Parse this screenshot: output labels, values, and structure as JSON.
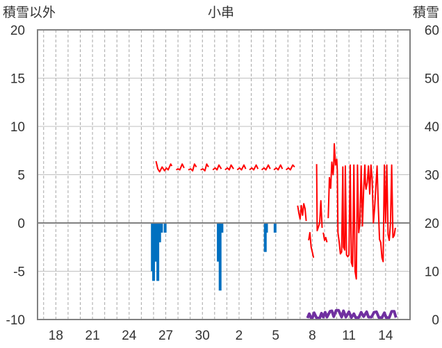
{
  "chart_data": {
    "type": "line",
    "title": "小串",
    "left_axis_label": "積雪以外",
    "right_axis_label": "積雪",
    "left_axis": {
      "min": -10,
      "max": 20,
      "ticks": [
        {
          "value": -10,
          "label": "-10"
        },
        {
          "value": -5,
          "label": "-5"
        },
        {
          "value": 0,
          "label": "0"
        },
        {
          "value": 5,
          "label": "5"
        },
        {
          "value": 10,
          "label": "10"
        },
        {
          "value": 15,
          "label": "15"
        },
        {
          "value": 20,
          "label": "20"
        }
      ]
    },
    "right_axis": {
      "min": 0,
      "max": 60,
      "ticks": [
        {
          "value": 0,
          "label": "0"
        },
        {
          "value": 10,
          "label": "10"
        },
        {
          "value": 20,
          "label": "20"
        },
        {
          "value": 30,
          "label": "30"
        },
        {
          "value": 40,
          "label": "40"
        },
        {
          "value": 50,
          "label": "50"
        },
        {
          "value": 60,
          "label": "60"
        }
      ]
    },
    "x_axis": {
      "min_day": 16.5,
      "max_day": 47.0,
      "ticks": [
        {
          "day": 18,
          "label": "18"
        },
        {
          "day": 21,
          "label": "21"
        },
        {
          "day": 24,
          "label": "24"
        },
        {
          "day": 27,
          "label": "27"
        },
        {
          "day": 30,
          "label": "30"
        },
        {
          "day": 33,
          "label": "2"
        },
        {
          "day": 36,
          "label": "5"
        },
        {
          "day": 39,
          "label": "8"
        },
        {
          "day": 42,
          "label": "11"
        },
        {
          "day": 45,
          "label": "14"
        }
      ]
    },
    "grid": {
      "vertical": "dashed",
      "horizontal": true
    },
    "colors": {
      "temperature": "#ff0000",
      "precipitation": "#0070c0",
      "snow": "#7030a0",
      "zero_line": "#808080"
    },
    "precipitation_bars": [
      {
        "day": 25.9,
        "value": -5.0
      },
      {
        "day": 26.0,
        "value": -6.0
      },
      {
        "day": 26.1,
        "value": -4.0
      },
      {
        "day": 26.2,
        "value": -4.0
      },
      {
        "day": 26.35,
        "value": -6.0
      },
      {
        "day": 26.5,
        "value": -2.0
      },
      {
        "day": 26.65,
        "value": -1.0
      },
      {
        "day": 26.95,
        "value": -1.0
      },
      {
        "day": 31.3,
        "value": -4.0
      },
      {
        "day": 31.4,
        "value": -4.0
      },
      {
        "day": 31.45,
        "value": -7.0
      },
      {
        "day": 31.55,
        "value": -1.0
      },
      {
        "day": 31.6,
        "value": -1.0
      },
      {
        "day": 35.15,
        "value": -3.0
      },
      {
        "day": 35.25,
        "value": -1.0
      },
      {
        "day": 35.95,
        "value": -1.0
      }
    ],
    "temperature_series": [
      [
        [
          26.2,
          6.4
        ],
        [
          26.35,
          5.6
        ],
        [
          26.5,
          5.3
        ],
        [
          26.7,
          5.8
        ],
        [
          26.9,
          5.4
        ],
        [
          27.05,
          5.7
        ],
        [
          27.2,
          5.5
        ],
        [
          27.4,
          6.1
        ],
        [
          27.5,
          5.9
        ]
      ],
      [
        [
          27.85,
          5.5
        ],
        [
          28.0,
          5.6
        ],
        [
          28.15,
          5.5
        ],
        [
          28.35,
          6.1
        ],
        [
          28.5,
          5.7
        ]
      ],
      [
        [
          28.85,
          5.5
        ],
        [
          29.05,
          5.6
        ],
        [
          29.2,
          5.4
        ],
        [
          29.35,
          6.1
        ],
        [
          29.5,
          5.8
        ]
      ],
      [
        [
          29.85,
          5.5
        ],
        [
          30.05,
          5.6
        ],
        [
          30.2,
          5.4
        ],
        [
          30.35,
          6.1
        ],
        [
          30.5,
          5.8
        ]
      ],
      [
        [
          30.85,
          5.5
        ],
        [
          31.05,
          5.7
        ],
        [
          31.2,
          5.5
        ],
        [
          31.35,
          6.0
        ],
        [
          31.55,
          5.6
        ]
      ],
      [
        [
          31.85,
          5.5
        ],
        [
          32.05,
          5.7
        ],
        [
          32.2,
          5.5
        ],
        [
          32.35,
          6.0
        ],
        [
          32.55,
          5.6
        ]
      ],
      [
        [
          32.85,
          5.5
        ],
        [
          33.05,
          5.7
        ],
        [
          33.2,
          5.5
        ],
        [
          33.4,
          6.0
        ],
        [
          33.55,
          5.6
        ]
      ],
      [
        [
          33.85,
          5.5
        ],
        [
          34.05,
          5.7
        ],
        [
          34.2,
          5.5
        ],
        [
          34.4,
          6.0
        ],
        [
          34.55,
          5.6
        ]
      ],
      [
        [
          34.85,
          5.5
        ],
        [
          35.05,
          5.7
        ],
        [
          35.2,
          5.5
        ],
        [
          35.4,
          6.0
        ],
        [
          35.55,
          5.6
        ]
      ],
      [
        [
          35.85,
          5.5
        ],
        [
          36.05,
          5.7
        ],
        [
          36.2,
          5.5
        ],
        [
          36.4,
          6.0
        ],
        [
          36.55,
          5.6
        ]
      ],
      [
        [
          36.85,
          5.5
        ],
        [
          37.05,
          5.7
        ],
        [
          37.2,
          5.5
        ],
        [
          37.4,
          6.0
        ],
        [
          37.55,
          5.8
        ]
      ],
      [
        [
          37.8,
          1.8
        ],
        [
          37.9,
          1.0
        ],
        [
          38.0,
          0.4
        ],
        [
          38.1,
          1.8
        ],
        [
          38.2,
          0.8
        ],
        [
          38.3,
          2.0
        ],
        [
          38.4,
          1.5
        ],
        [
          38.5,
          0.2
        ]
      ],
      [
        [
          38.7,
          -1.8
        ],
        [
          38.8,
          -1.0
        ],
        [
          38.9,
          -2.5
        ],
        [
          39.0,
          -3.0
        ],
        [
          39.1,
          -3.6
        ]
      ],
      [
        [
          39.35,
          6.1
        ],
        [
          39.4,
          -0.8
        ],
        [
          39.5,
          -0.4
        ],
        [
          39.6,
          0.0
        ],
        [
          39.7,
          2.3
        ],
        [
          39.8,
          -0.5
        ]
      ],
      [
        [
          39.9,
          -1.0
        ],
        [
          40.0,
          -1.8
        ],
        [
          40.1,
          -1.5
        ],
        [
          40.2,
          -2.0
        ]
      ],
      [
        [
          40.3,
          0.5
        ],
        [
          40.4,
          4.7
        ],
        [
          40.5,
          3.6
        ],
        [
          40.6,
          6.3
        ],
        [
          40.7,
          5.0
        ],
        [
          40.75,
          6.0
        ],
        [
          40.8,
          8.2
        ],
        [
          40.9,
          6.0
        ],
        [
          41.0,
          6.6
        ],
        [
          41.05,
          5.4
        ],
        [
          41.1,
          -1.0
        ],
        [
          41.2,
          -2.0
        ],
        [
          41.3,
          -3.2
        ],
        [
          41.4,
          -3.0
        ],
        [
          41.5,
          5.8
        ],
        [
          41.55,
          -2.5
        ],
        [
          41.65,
          -2.8
        ],
        [
          41.7,
          5.9
        ],
        [
          41.8,
          -3.3
        ],
        [
          41.9,
          -3.5
        ],
        [
          42.0,
          -3.3
        ],
        [
          42.1,
          6.0
        ],
        [
          42.2,
          -4.1
        ],
        [
          42.3,
          -4.5
        ],
        [
          42.4,
          6.0
        ],
        [
          42.5,
          -5.0
        ],
        [
          42.6,
          -5.8
        ],
        [
          42.7,
          6.0
        ],
        [
          42.8,
          -1.0
        ],
        [
          42.9,
          0.0
        ],
        [
          43.0,
          5.9
        ],
        [
          43.1,
          -0.3
        ],
        [
          43.2,
          3.3
        ],
        [
          43.3,
          6.0
        ],
        [
          43.35,
          4.0
        ],
        [
          43.4,
          3.5
        ],
        [
          43.5,
          4.2
        ],
        [
          43.6,
          5.9
        ],
        [
          43.7,
          3.0
        ],
        [
          43.8,
          6.0
        ],
        [
          43.9,
          4.5
        ],
        [
          44.0,
          0.0
        ],
        [
          44.1,
          1.5
        ],
        [
          44.2,
          3.7
        ],
        [
          44.3,
          5.9
        ],
        [
          44.4,
          1.8
        ],
        [
          44.5,
          -1.7
        ],
        [
          44.6,
          -2.0
        ],
        [
          44.7,
          -3.6
        ],
        [
          44.8,
          -4.0
        ],
        [
          44.9,
          6.0
        ],
        [
          45.0,
          0.0
        ],
        [
          45.1,
          6.0
        ],
        [
          45.2,
          -1.2
        ],
        [
          45.3,
          -1.8
        ],
        [
          45.4,
          0.0
        ],
        [
          45.5,
          6.0
        ],
        [
          45.6,
          -1.5
        ],
        [
          45.7,
          -1.3
        ],
        [
          45.8,
          -0.5
        ]
      ]
    ],
    "snow_series": [
      [
        [
          38.6,
          0.3
        ],
        [
          38.75,
          1.2
        ],
        [
          38.9,
          0.3
        ],
        [
          39.0,
          0.3
        ],
        [
          39.15,
          1.4
        ],
        [
          39.35,
          0.3
        ],
        [
          39.6,
          0.3
        ],
        [
          39.75,
          1.3
        ],
        [
          39.9,
          0.5
        ],
        [
          40.05,
          1.5
        ],
        [
          40.2,
          0.5
        ],
        [
          40.45,
          1.7
        ],
        [
          40.6,
          1.8
        ],
        [
          40.75,
          0.6
        ],
        [
          40.95,
          1.9
        ],
        [
          41.15,
          1.9
        ],
        [
          41.4,
          0.5
        ],
        [
          41.55,
          1.8
        ],
        [
          41.75,
          0.5
        ],
        [
          42.0,
          1.6
        ],
        [
          42.2,
          0.4
        ],
        [
          42.4,
          1.2
        ],
        [
          42.55,
          0.4
        ],
        [
          42.8,
          0.4
        ],
        [
          43.0,
          1.5
        ],
        [
          43.2,
          0.6
        ],
        [
          43.45,
          1.6
        ],
        [
          43.6,
          0.5
        ],
        [
          43.85,
          0.5
        ],
        [
          44.05,
          1.5
        ],
        [
          44.25,
          1.6
        ],
        [
          44.45,
          0.4
        ],
        [
          44.7,
          0.4
        ],
        [
          44.9,
          1.4
        ],
        [
          45.05,
          0.4
        ],
        [
          45.3,
          0.4
        ],
        [
          45.5,
          1.7
        ],
        [
          45.7,
          1.7
        ],
        [
          45.85,
          0.4
        ]
      ]
    ]
  }
}
